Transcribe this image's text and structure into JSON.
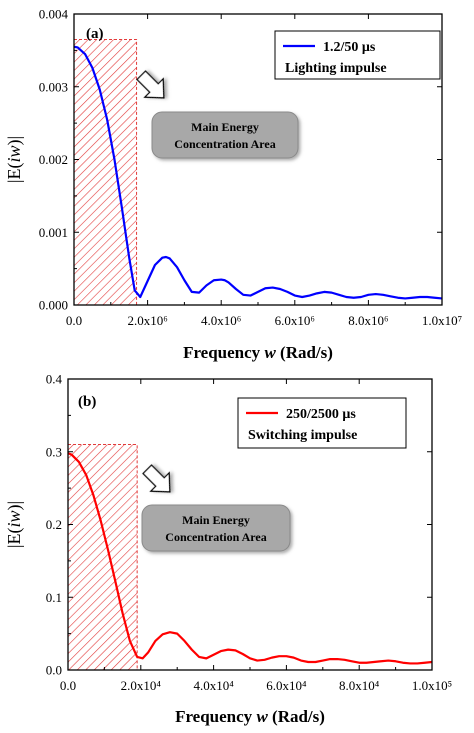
{
  "chart_data": [
    {
      "type": "line",
      "panel_label": "(a)",
      "xlabel_parts": [
        "Frequency ",
        "w",
        " (Rad/s)"
      ],
      "ylabel_parts": [
        "|E(",
        "iw",
        ")|"
      ],
      "xlim": [
        0,
        10000000
      ],
      "ylim": [
        0,
        0.004
      ],
      "x_tick_labels": [
        "0.0",
        "2.0x10⁶",
        "4.0x10⁶",
        "6.0x10⁶",
        "8.0x10⁶",
        "1.0x10⁷"
      ],
      "y_tick_labels": [
        "0.000",
        "0.001",
        "0.002",
        "0.003",
        "0.004"
      ],
      "series": [
        {
          "name": "1.2/50 μs",
          "legend_sub": "Lighting impulse",
          "color": "#0000ff",
          "x": [
            0,
            100000,
            300000,
            500000,
            700000,
            900000,
            1100000,
            1300000,
            1500000,
            1650000,
            1800000,
            2000000,
            2200000,
            2400000,
            2500000,
            2600000,
            2800000,
            3000000,
            3200000,
            3400000,
            3600000,
            3800000,
            4000000,
            4100000,
            4200000,
            4400000,
            4600000,
            4800000,
            5000000,
            5200000,
            5400000,
            5600000,
            5800000,
            6000000,
            6200000,
            6400000,
            6600000,
            6800000,
            7000000,
            7200000,
            7400000,
            7600000,
            7800000,
            8000000,
            8200000,
            8400000,
            8600000,
            8800000,
            9000000,
            9200000,
            9400000,
            9600000,
            9800000,
            10000000
          ],
          "y": [
            0.00355,
            0.00354,
            0.00345,
            0.00326,
            0.00296,
            0.00255,
            0.002,
            0.00134,
            0.00065,
            0.0002,
            0.00011,
            0.00033,
            0.00055,
            0.00065,
            0.00066,
            0.00064,
            0.00052,
            0.00034,
            0.00018,
            0.00017,
            0.00027,
            0.00034,
            0.00035,
            0.00034,
            0.00031,
            0.00022,
            0.00014,
            0.00013,
            0.00018,
            0.00023,
            0.00024,
            0.00022,
            0.00018,
            0.00013,
            0.00011,
            0.00013,
            0.00016,
            0.00018,
            0.00017,
            0.00014,
            0.00011,
            0.0001,
            0.00011,
            0.00014,
            0.00015,
            0.00014,
            0.00012,
            0.0001,
            9e-05,
            0.0001,
            0.00011,
            0.00011,
            0.0001,
            9e-05
          ]
        }
      ],
      "shaded_region": {
        "x_start": 0,
        "x_end": 1700000,
        "y_top": 0.00365
      },
      "annotation": {
        "lines": [
          "Main Energy",
          "Concentration Area"
        ]
      }
    },
    {
      "type": "line",
      "panel_label": "(b)",
      "xlabel_parts": [
        "Frequency ",
        "w",
        " (Rad/s)"
      ],
      "ylabel_parts": [
        "|E(",
        "iw",
        ")|"
      ],
      "xlim": [
        0,
        100000
      ],
      "ylim": [
        0,
        0.4
      ],
      "x_tick_labels": [
        "0.0",
        "2.0x10⁴",
        "4.0x10⁴",
        "6.0x10⁴",
        "8.0x10⁴",
        "1.0x10⁵"
      ],
      "y_tick_labels": [
        "0.0",
        "0.1",
        "0.2",
        "0.3",
        "0.4"
      ],
      "series": [
        {
          "name": "250/2500 μs",
          "legend_sub": "Switching impulse",
          "color": "#ff0000",
          "x": [
            0,
            1000,
            3000,
            5000,
            7000,
            9000,
            11000,
            13000,
            15000,
            17000,
            19000,
            20500,
            22000,
            24000,
            26000,
            28000,
            30000,
            32000,
            34000,
            36000,
            38000,
            40000,
            42000,
            44000,
            46000,
            48000,
            50000,
            52000,
            54000,
            56000,
            58000,
            60000,
            62000,
            64000,
            66000,
            68000,
            70000,
            72000,
            74000,
            76000,
            78000,
            80000,
            82000,
            84000,
            86000,
            88000,
            90000,
            92000,
            94000,
            96000,
            98000,
            100000
          ],
          "y": [
            0.298,
            0.296,
            0.286,
            0.268,
            0.24,
            0.205,
            0.165,
            0.122,
            0.078,
            0.04,
            0.018,
            0.016,
            0.024,
            0.04,
            0.049,
            0.052,
            0.05,
            0.04,
            0.028,
            0.018,
            0.016,
            0.021,
            0.026,
            0.028,
            0.027,
            0.022,
            0.016,
            0.013,
            0.014,
            0.017,
            0.019,
            0.019,
            0.017,
            0.013,
            0.011,
            0.011,
            0.013,
            0.015,
            0.015,
            0.014,
            0.012,
            0.01,
            0.01,
            0.011,
            0.012,
            0.013,
            0.012,
            0.01,
            0.009,
            0.009,
            0.01,
            0.011
          ]
        }
      ],
      "shaded_region": {
        "x_start": 0,
        "x_end": 19000,
        "y_top": 0.31
      },
      "annotation": {
        "lines": [
          "Main Energy",
          "Concentration Area"
        ]
      }
    }
  ]
}
